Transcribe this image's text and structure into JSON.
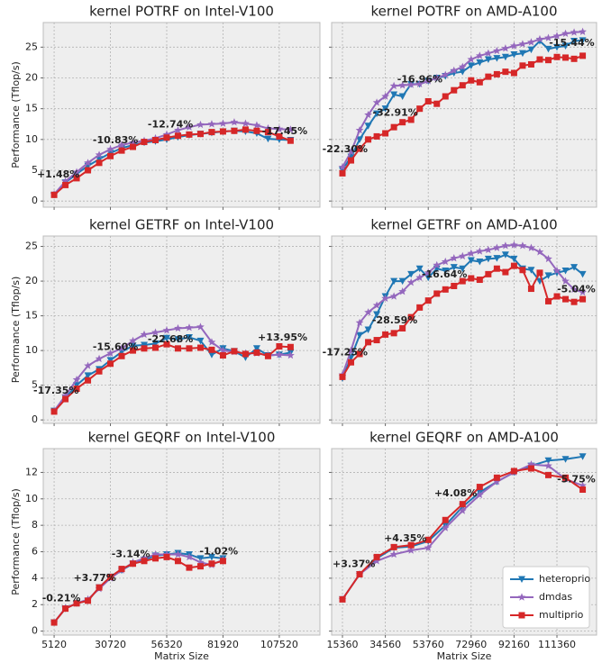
{
  "chart_data": [
    {
      "type": "line",
      "title": "kernel POTRF on Intel-V100",
      "ylabel": "Performance (Tflop/s)",
      "x": [
        5120,
        10240,
        15360,
        20480,
        25600,
        30720,
        35840,
        40960,
        46080,
        51200,
        56320,
        61440,
        66560,
        71680,
        76800,
        81920,
        87040,
        92160,
        97280,
        102400,
        107520,
        112640
      ],
      "xlim": [
        172,
        126000
      ],
      "xticks": [
        5120,
        30720,
        56320,
        81920,
        107520
      ],
      "ylim": [
        -1,
        29
      ],
      "yticks": [
        0,
        5,
        10,
        15,
        20,
        25
      ],
      "grid": true,
      "series": [
        {
          "color": "#1f77b4",
          "marker": "v",
          "values": [
            1.0,
            3.0,
            4.4,
            5.7,
            6.8,
            7.8,
            8.6,
            9.1,
            9.5,
            9.7,
            10.0,
            10.4,
            10.7,
            10.9,
            11.1,
            11.3,
            11.4,
            11.3,
            11.0,
            10.1,
            10.0,
            9.9
          ]
        },
        {
          "color": "#9467bd",
          "marker": "*",
          "values": [
            1.1,
            3.2,
            4.7,
            6.2,
            7.5,
            8.4,
            9.1,
            9.5,
            9.8,
            10.2,
            10.8,
            11.5,
            12.0,
            12.4,
            12.5,
            12.6,
            12.8,
            12.6,
            12.3,
            11.8,
            11.7,
            11.6
          ]
        },
        {
          "color": "#d62728",
          "marker": "s",
          "values": [
            1.0,
            2.6,
            3.7,
            5.0,
            6.2,
            7.3,
            8.2,
            8.8,
            9.6,
            9.9,
            10.3,
            10.6,
            10.8,
            10.9,
            11.2,
            11.3,
            11.4,
            11.6,
            11.4,
            11.2,
            10.5,
            9.8
          ]
        }
      ],
      "annotations": [
        {
          "text": "+1.48%",
          "x": 7000,
          "y": 4.3
        },
        {
          "text": "-10.83%",
          "x": 33000,
          "y": 9.8
        },
        {
          "text": "-12.74%",
          "x": 58000,
          "y": 12.4
        },
        {
          "text": "-17.45%",
          "x": 110000,
          "y": 11.3
        }
      ]
    },
    {
      "type": "line",
      "title": "kernel POTRF on AMD-A100",
      "x": [
        15360,
        19200,
        23040,
        26880,
        30720,
        34560,
        38400,
        42240,
        46080,
        49920,
        53760,
        57600,
        61440,
        65280,
        69120,
        72960,
        76800,
        80640,
        84480,
        88320,
        92160,
        96000,
        99840,
        103680,
        107520,
        111360,
        115200,
        119040,
        122880
      ],
      "xlim": [
        10520,
        129100
      ],
      "xticks": [
        15360,
        34560,
        53760,
        72960,
        92160,
        111360
      ],
      "ylim": [
        -1,
        29
      ],
      "yticks": [
        0,
        5,
        10,
        15,
        20,
        25
      ],
      "grid": true,
      "series": [
        {
          "color": "#1f77b4",
          "marker": "v",
          "values": [
            5,
            7.2,
            10,
            12.2,
            14.2,
            15,
            17.3,
            17,
            19,
            19,
            19.5,
            20,
            20.3,
            20.8,
            21,
            22,
            22.5,
            23,
            23.2,
            23.4,
            23.8,
            24,
            24.6,
            26,
            24.7,
            25,
            25.2,
            26,
            26.1
          ]
        },
        {
          "color": "#9467bd",
          "marker": "*",
          "values": [
            5.5,
            8,
            11.5,
            14,
            16,
            17,
            18.7,
            18.8,
            18.9,
            19,
            19.5,
            20,
            20.5,
            21.2,
            21.8,
            23,
            23.6,
            24,
            24.4,
            24.8,
            25.2,
            25.5,
            25.8,
            26.3,
            26.5,
            26.8,
            27.2,
            27.4,
            27.5
          ]
        },
        {
          "color": "#d62728",
          "marker": "s",
          "values": [
            4.5,
            6.6,
            8.5,
            10,
            10.5,
            11,
            12,
            12.8,
            13.2,
            15,
            16.2,
            15.8,
            17,
            18,
            18.8,
            19.6,
            19.3,
            20.2,
            20.6,
            21,
            20.8,
            22,
            22.2,
            23,
            22.9,
            23.4,
            23.3,
            23.1,
            23.6
          ]
        }
      ],
      "annotations": [
        {
          "text": "-22.30%",
          "x": 16500,
          "y": 8.4
        },
        {
          "text": "-32.91%",
          "x": 39000,
          "y": 14.3
        },
        {
          "text": "-16.96%",
          "x": 50000,
          "y": 19.7
        },
        {
          "text": "-15.44%",
          "x": 118000,
          "y": 25.6
        }
      ]
    },
    {
      "type": "line",
      "title": "kernel GETRF on Intel-V100",
      "ylabel": "Performance (Tflop/s)",
      "x": [
        5120,
        10240,
        15360,
        20480,
        25600,
        30720,
        35840,
        40960,
        46080,
        51200,
        56320,
        61440,
        66560,
        71680,
        76800,
        81920,
        87040,
        92160,
        97280,
        102400,
        107520,
        112640
      ],
      "xlim": [
        172,
        126000
      ],
      "xticks": [
        5120,
        30720,
        56320,
        81920,
        107520
      ],
      "ylim": [
        -0.5,
        26.5
      ],
      "yticks": [
        0,
        5,
        10,
        15,
        20,
        25
      ],
      "grid": true,
      "series": [
        {
          "color": "#1f77b4",
          "marker": "v",
          "values": [
            1.3,
            3.2,
            5,
            6.4,
            7.3,
            8.6,
            9.8,
            10.7,
            10.8,
            11.0,
            11.8,
            11.6,
            11.9,
            11.4,
            9.4,
            10.3,
            9.9,
            9.0,
            10.3,
            9.3,
            9.4,
            9.7
          ]
        },
        {
          "color": "#9467bd",
          "marker": "*",
          "values": [
            1.3,
            3.5,
            5.8,
            7.8,
            8.8,
            9.6,
            10.3,
            11.4,
            12.3,
            12.6,
            12.9,
            13.2,
            13.3,
            13.4,
            11.2,
            10,
            9.8,
            9.6,
            9.6,
            9.3,
            9.4,
            9.3
          ]
        },
        {
          "color": "#d62728",
          "marker": "s",
          "values": [
            1.2,
            3,
            4.5,
            5.7,
            7,
            8.1,
            9.2,
            10,
            10.3,
            10.4,
            10.9,
            10.3,
            10.3,
            10.4,
            10.1,
            9.3,
            9.9,
            9.5,
            9.7,
            9.2,
            10.6,
            10.5
          ]
        }
      ],
      "annotations": [
        {
          "text": "-17.35%",
          "x": 6000,
          "y": 4.2
        },
        {
          "text": "-15.60%",
          "x": 33000,
          "y": 10.5
        },
        {
          "text": "-22.68%",
          "x": 58000,
          "y": 11.6
        },
        {
          "text": "+13.95%",
          "x": 109000,
          "y": 11.8
        }
      ]
    },
    {
      "type": "line",
      "title": "kernel GETRF on AMD-A100",
      "x": [
        15360,
        19200,
        23040,
        26880,
        30720,
        34560,
        38400,
        42240,
        46080,
        49920,
        53760,
        57600,
        61440,
        65280,
        69120,
        72960,
        76800,
        80640,
        84480,
        88320,
        92160,
        96000,
        99840,
        103680,
        107520,
        111360,
        115200,
        119040,
        122880
      ],
      "xlim": [
        10520,
        129100
      ],
      "xticks": [
        15360,
        34560,
        53760,
        72960,
        92160,
        111360
      ],
      "ylim": [
        -0.5,
        26.5
      ],
      "yticks": [
        0,
        5,
        10,
        15,
        20,
        25
      ],
      "grid": true,
      "series": [
        {
          "color": "#1f77b4",
          "marker": "v",
          "values": [
            6,
            9,
            12.2,
            13,
            15.2,
            17.8,
            20,
            20,
            21,
            21.8,
            20.5,
            21.8,
            21.5,
            22,
            21.8,
            23,
            22.8,
            23.2,
            23.3,
            23.8,
            23.2,
            21.8,
            21.6,
            20,
            20.8,
            21.2,
            21.5,
            22,
            21
          ]
        },
        {
          "color": "#9467bd",
          "marker": "*",
          "values": [
            6.5,
            10,
            14,
            15.5,
            16.5,
            17.5,
            17.8,
            18.5,
            19.8,
            20.5,
            21.2,
            22.3,
            22.8,
            23.3,
            23.6,
            24,
            24.3,
            24.5,
            24.8,
            25.1,
            25.2,
            25.1,
            24.8,
            24.2,
            23.2,
            21.5,
            20,
            18.8,
            18.4
          ]
        },
        {
          "color": "#d62728",
          "marker": "s",
          "values": [
            6.2,
            8.3,
            9.5,
            11.2,
            11.5,
            12.3,
            12.5,
            13.2,
            14.8,
            16.2,
            17.2,
            18.2,
            18.8,
            19.3,
            20,
            20.4,
            20.2,
            21,
            21.8,
            21.3,
            22.2,
            21.6,
            18.9,
            21.2,
            17.1,
            17.8,
            17.4,
            17,
            17.4
          ]
        }
      ],
      "annotations": [
        {
          "text": "-17.25%",
          "x": 16500,
          "y": 9.7
        },
        {
          "text": "-28.59%",
          "x": 38800,
          "y": 14.3
        },
        {
          "text": "-16.64%",
          "x": 61000,
          "y": 20.9
        },
        {
          "text": "-5.04%",
          "x": 120000,
          "y": 18.8
        }
      ]
    },
    {
      "type": "line",
      "title": "kernel GEQRF on Intel-V100",
      "ylabel": "Performance (Tflop/s)",
      "xlabel": "Matrix Size",
      "x": [
        5120,
        10240,
        15360,
        20480,
        25600,
        30720,
        35840,
        40960,
        46080,
        51200,
        56320,
        61440,
        66560,
        71680,
        76800,
        81920
      ],
      "xlim": [
        172,
        126000
      ],
      "xticks": [
        5120,
        30720,
        56320,
        81920,
        107520
      ],
      "ylim": [
        -0.3,
        13.8
      ],
      "yticks": [
        0,
        2,
        4,
        6,
        8,
        10,
        12
      ],
      "grid": true,
      "series": [
        {
          "color": "#1f77b4",
          "marker": "v",
          "values": [
            0.65,
            1.7,
            2.1,
            2.3,
            3.3,
            4.1,
            4.6,
            5.1,
            5.4,
            5.7,
            5.8,
            5.9,
            5.8,
            5.5,
            5.6,
            5.5
          ]
        },
        {
          "color": "#9467bd",
          "marker": "*",
          "values": [
            0.65,
            1.75,
            2.1,
            2.4,
            3.2,
            4.0,
            4.6,
            5.2,
            5.5,
            5.8,
            5.8,
            5.8,
            5.6,
            5.2,
            5.0,
            5.4
          ]
        },
        {
          "color": "#d62728",
          "marker": "s",
          "values": [
            0.65,
            1.7,
            2.1,
            2.3,
            3.3,
            4.1,
            4.7,
            5.1,
            5.3,
            5.5,
            5.6,
            5.3,
            4.8,
            4.9,
            5.1,
            5.3
          ]
        }
      ],
      "annotations": [
        {
          "text": "-0.21%",
          "x": 8400,
          "y": 2.45
        },
        {
          "text": "+3.77%",
          "x": 23600,
          "y": 4.0
        },
        {
          "text": "-3.14%",
          "x": 40000,
          "y": 5.8
        },
        {
          "text": "-1.02%",
          "x": 80000,
          "y": 6.0
        }
      ]
    },
    {
      "type": "line",
      "title": "kernel GEQRF on AMD-A100",
      "xlabel": "Matrix Size",
      "x": [
        15360,
        23040,
        30720,
        38400,
        46080,
        53760,
        61440,
        69120,
        76800,
        84480,
        92160,
        99840,
        107520,
        115200,
        122880
      ],
      "xlim": [
        10520,
        129100
      ],
      "xticks": [
        15360,
        34560,
        53760,
        72960,
        92160,
        111360
      ],
      "ylim": [
        -0.3,
        13.8
      ],
      "yticks": [
        0,
        2,
        4,
        6,
        8,
        10,
        12
      ],
      "grid": true,
      "legend": "lower right",
      "series": [
        {
          "name": "heteroprio",
          "color": "#1f77b4",
          "marker": "v",
          "values": [
            2.4,
            4.3,
            5.5,
            6.3,
            6.4,
            6.8,
            8.0,
            9.4,
            10.5,
            11.3,
            12.0,
            12.5,
            12.9,
            13.0,
            13.2
          ]
        },
        {
          "name": "dmdas",
          "color": "#9467bd",
          "marker": "*",
          "values": [
            2.4,
            4.3,
            5.3,
            5.8,
            6.1,
            6.3,
            7.8,
            9.1,
            10.3,
            11.3,
            12.0,
            12.6,
            12.5,
            11.5,
            11.0
          ]
        },
        {
          "name": "multiprio",
          "color": "#d62728",
          "marker": "s",
          "values": [
            2.4,
            4.3,
            5.6,
            6.35,
            6.5,
            6.9,
            8.4,
            9.6,
            10.9,
            11.6,
            12.1,
            12.3,
            11.8,
            11.6,
            10.7
          ]
        }
      ],
      "annotations": [
        {
          "text": "+3.37%",
          "x": 20500,
          "y": 5.05
        },
        {
          "text": "+4.35%",
          "x": 43500,
          "y": 7.0
        },
        {
          "text": "+4.08%",
          "x": 66000,
          "y": 10.4
        },
        {
          "text": "-5.75%",
          "x": 120000,
          "y": 11.45
        }
      ]
    }
  ]
}
